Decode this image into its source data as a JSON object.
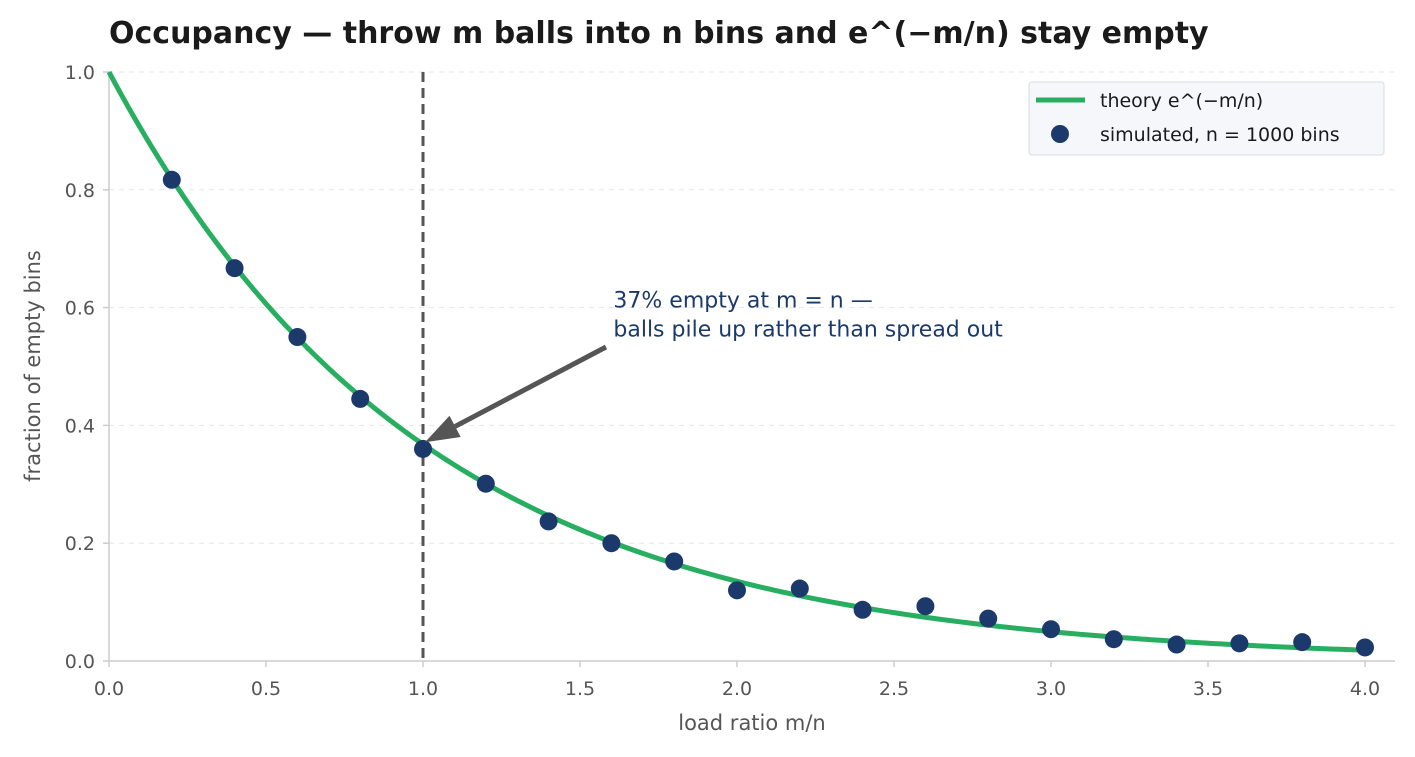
{
  "chart_data": {
    "type": "line",
    "title": "Occupancy — throw m balls into n bins and e^(−m/n) stay empty",
    "xlabel": "load ratio m/n",
    "ylabel": "fraction of empty bins",
    "xlim": [
      0.0,
      4.0
    ],
    "ylim": [
      0.0,
      1.0
    ],
    "x_ticks": [
      0.0,
      0.5,
      1.0,
      1.5,
      2.0,
      2.5,
      3.0,
      3.5,
      4.0
    ],
    "x_tick_labels": [
      "0.0",
      "0.5",
      "1.0",
      "1.5",
      "2.0",
      "2.5",
      "3.0",
      "3.5",
      "4.0"
    ],
    "y_ticks": [
      0.0,
      0.2,
      0.4,
      0.6,
      0.8,
      1.0
    ],
    "y_tick_labels": [
      "0.0",
      "0.2",
      "0.4",
      "0.6",
      "0.8",
      "1.0"
    ],
    "grid": "horizontal dashed",
    "legend_position": "top-right",
    "series": [
      {
        "name": "theory e^(−m/n)",
        "kind": "line",
        "function": "exp(-x)",
        "color": "#27ae60"
      },
      {
        "name": "simulated, n = 1000 bins",
        "kind": "scatter",
        "color": "#1b3a6b",
        "x": [
          0.2,
          0.4,
          0.6,
          0.8,
          1.0,
          1.2,
          1.4,
          1.6,
          1.8,
          2.0,
          2.2,
          2.4,
          2.6,
          2.8,
          3.0,
          3.2,
          3.4,
          3.6,
          3.8,
          4.0
        ],
        "y": [
          0.817,
          0.667,
          0.55,
          0.445,
          0.36,
          0.301,
          0.237,
          0.2,
          0.169,
          0.12,
          0.123,
          0.087,
          0.093,
          0.072,
          0.054,
          0.037,
          0.028,
          0.03,
          0.032,
          0.023
        ]
      }
    ],
    "vline": {
      "x": 1.0,
      "color": "#555555"
    },
    "annotation": {
      "lines": [
        "37% empty at m = n —",
        "balls pile up rather than spread out"
      ],
      "text_at": [
        1.6,
        0.6
      ],
      "arrow_to": [
        1.0,
        0.368
      ],
      "color": "#1b3a6b"
    }
  }
}
